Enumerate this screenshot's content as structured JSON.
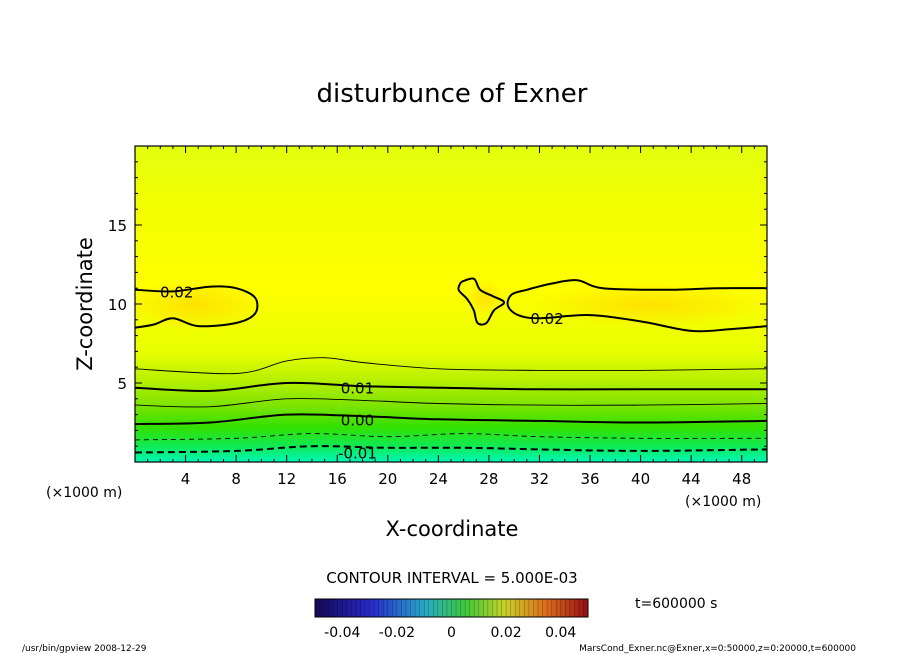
{
  "chart_data": {
    "type": "contour",
    "title": "disturbunce of Exner",
    "xlabel": "X-coordinate",
    "ylabel": "Z-coordinate",
    "x_unit": "(×1000 m)",
    "y_unit": "(×1000 m)",
    "xlim": [
      0,
      50
    ],
    "ylim": [
      0,
      20
    ],
    "x_ticks": [
      4,
      8,
      12,
      16,
      20,
      24,
      28,
      32,
      36,
      40,
      44,
      48
    ],
    "x_tick_labels": [
      "4",
      "8",
      "12",
      "16",
      "20",
      "24",
      "28",
      "32",
      "36",
      "40",
      "44",
      "48"
    ],
    "y_ticks": [
      5,
      10,
      15
    ],
    "y_tick_labels": [
      "5",
      "10",
      "15"
    ],
    "contour_interval_label": "CONTOUR INTERVAL = 5.000E-03",
    "contour_labels": [
      {
        "text": "0.02",
        "x": 3.3,
        "z": 10.8
      },
      {
        "text": "0.02",
        "x": 32.6,
        "z": 9.1
      },
      {
        "text": "0.01",
        "x": 17.6,
        "z": 4.7
      },
      {
        "text": "0.00",
        "x": 17.6,
        "z": 2.7
      },
      {
        "text": "-0.01",
        "x": 17.6,
        "z": 0.6
      }
    ],
    "contours": [
      {
        "level": -0.01,
        "style": "dashed",
        "weight": "bold",
        "points": [
          [
            0,
            0.6
          ],
          [
            8,
            0.7
          ],
          [
            14,
            1.0
          ],
          [
            20,
            0.9
          ],
          [
            26,
            0.9
          ],
          [
            32,
            0.8
          ],
          [
            40,
            0.7
          ],
          [
            50,
            0.8
          ]
        ]
      },
      {
        "level": -0.005,
        "style": "dashed",
        "weight": "thin",
        "points": [
          [
            0,
            1.4
          ],
          [
            8,
            1.5
          ],
          [
            14,
            1.8
          ],
          [
            20,
            1.6
          ],
          [
            26,
            1.8
          ],
          [
            32,
            1.6
          ],
          [
            40,
            1.5
          ],
          [
            50,
            1.5
          ]
        ]
      },
      {
        "level": 0.0,
        "style": "solid",
        "weight": "bold",
        "points": [
          [
            0,
            2.4
          ],
          [
            6,
            2.5
          ],
          [
            12,
            3.0
          ],
          [
            18,
            2.9
          ],
          [
            24,
            2.7
          ],
          [
            32,
            2.6
          ],
          [
            40,
            2.5
          ],
          [
            50,
            2.6
          ]
        ]
      },
      {
        "level": 0.005,
        "style": "solid",
        "weight": "thin",
        "points": [
          [
            0,
            3.6
          ],
          [
            6,
            3.5
          ],
          [
            12,
            4.0
          ],
          [
            18,
            3.9
          ],
          [
            24,
            3.7
          ],
          [
            32,
            3.6
          ],
          [
            40,
            3.6
          ],
          [
            50,
            3.7
          ]
        ]
      },
      {
        "level": 0.01,
        "style": "solid",
        "weight": "bold",
        "points": [
          [
            0,
            4.7
          ],
          [
            6,
            4.5
          ],
          [
            12,
            5.0
          ],
          [
            18,
            4.8
          ],
          [
            24,
            4.7
          ],
          [
            32,
            4.6
          ],
          [
            40,
            4.6
          ],
          [
            50,
            4.6
          ]
        ]
      },
      {
        "level": 0.015,
        "style": "solid",
        "weight": "thin",
        "points": [
          [
            0,
            5.9
          ],
          [
            8,
            5.6
          ],
          [
            12,
            6.4
          ],
          [
            15,
            6.6
          ],
          [
            18,
            6.3
          ],
          [
            24,
            5.9
          ],
          [
            32,
            5.8
          ],
          [
            40,
            5.8
          ],
          [
            50,
            5.9
          ]
        ]
      },
      {
        "level": 0.02,
        "style": "solid",
        "weight": "bold",
        "closed": true,
        "points": [
          [
            0,
            10.9
          ],
          [
            3,
            10.8
          ],
          [
            6,
            11.1
          ],
          [
            8,
            11.0
          ],
          [
            9.5,
            10.4
          ],
          [
            9.5,
            9.4
          ],
          [
            8,
            8.8
          ],
          [
            5,
            8.6
          ],
          [
            3,
            9.1
          ],
          [
            1.5,
            8.7
          ],
          [
            0,
            8.5
          ]
        ]
      },
      {
        "level": 0.02,
        "style": "solid",
        "weight": "bold",
        "closed": true,
        "points": [
          [
            25.8,
            11.4
          ],
          [
            26.8,
            11.6
          ],
          [
            27.3,
            10.9
          ],
          [
            28.3,
            10.5
          ],
          [
            29.2,
            10.1
          ],
          [
            28.4,
            9.6
          ],
          [
            27.8,
            8.8
          ],
          [
            27.1,
            8.8
          ],
          [
            26.8,
            9.6
          ],
          [
            26.3,
            10.3
          ],
          [
            25.6,
            10.9
          ],
          [
            25.8,
            11.4
          ]
        ]
      },
      {
        "level": 0.02,
        "style": "solid",
        "weight": "bold",
        "closed": true,
        "points": [
          [
            50,
            11.0
          ],
          [
            46,
            11.0
          ],
          [
            42,
            10.9
          ],
          [
            37,
            11.0
          ],
          [
            35,
            11.5
          ],
          [
            33,
            11.3
          ],
          [
            31,
            10.9
          ],
          [
            29.8,
            10.6
          ],
          [
            29.5,
            9.9
          ],
          [
            30.3,
            9.3
          ],
          [
            32,
            9.1
          ],
          [
            36,
            9.3
          ],
          [
            40,
            8.9
          ],
          [
            44,
            8.3
          ],
          [
            47,
            8.4
          ],
          [
            50,
            8.6
          ]
        ]
      }
    ],
    "colorbar": {
      "tick_labels": [
        "-0.04",
        "-0.02",
        "0",
        "0.02",
        "0.04"
      ],
      "ticks": [
        -0.04,
        -0.02,
        0.0,
        0.02,
        0.04
      ],
      "range": [
        -0.05,
        0.05
      ],
      "colormap": "jet-like (blue - cyan - green - yellow - red)"
    },
    "time_label": "t=600000 s"
  },
  "footer": {
    "left": "/usr/bin/gpview  2008-12-29",
    "right": "MarsCond_Exner.nc@Exner,x=0:50000,z=0:20000,t=600000"
  },
  "colors": {
    "field_top": "#eeff00",
    "field_bottom": "#00ffcc",
    "line": "#000000"
  }
}
